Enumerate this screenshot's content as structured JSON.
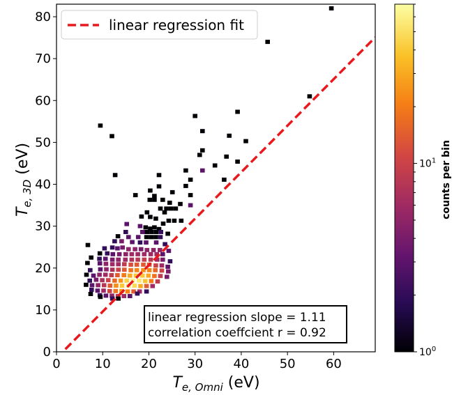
{
  "chart_data": {
    "type": "heatmap",
    "subtype": "2d-histogram",
    "xlabel": {
      "base": "T",
      "sub": "e, Omni",
      "unit": " (eV)"
    },
    "ylabel": {
      "base": "T",
      "sub": "e, 3D",
      "unit": " (eV)"
    },
    "xlim": [
      0,
      69
    ],
    "ylim": [
      0,
      83
    ],
    "xticks": [
      0,
      10,
      20,
      30,
      40,
      50,
      60
    ],
    "yticks": [
      0,
      10,
      20,
      30,
      40,
      50,
      60,
      70,
      80
    ],
    "bin_width": 1,
    "bin_height": 1,
    "colormap": "inferno",
    "colorbar": {
      "label": "counts per bin",
      "scale": "log",
      "range": [
        1,
        70
      ],
      "tick_labels": [
        {
          "value": 1,
          "base": "10",
          "exp": "0"
        },
        {
          "value": 10,
          "base": "10",
          "exp": "1"
        }
      ]
    },
    "legend": {
      "entry": "linear regression fit",
      "placement": "top-left",
      "color": "#e8191d",
      "style": "dashed"
    },
    "fit_line": {
      "slope": 1.11,
      "intercept": -1.5
    },
    "annotation": [
      "linear regression slope = 1.11",
      "correlation coeffcient r = 0.92"
    ],
    "bins": [
      [
        59.5,
        82,
        1
      ],
      [
        45.7,
        74,
        1
      ],
      [
        54.8,
        61,
        1
      ],
      [
        9.5,
        54,
        1
      ],
      [
        12,
        51.5,
        1
      ],
      [
        30,
        56.3,
        1
      ],
      [
        39.2,
        57.3,
        1
      ],
      [
        31.6,
        52.7,
        1
      ],
      [
        37.4,
        51.6,
        1
      ],
      [
        41,
        50.3,
        1
      ],
      [
        31.6,
        48.1,
        1
      ],
      [
        31,
        47,
        1
      ],
      [
        36.8,
        46.6,
        1
      ],
      [
        39.2,
        45.4,
        1
      ],
      [
        34.3,
        44.5,
        1
      ],
      [
        28,
        43.3,
        1
      ],
      [
        31.6,
        43.3,
        3
      ],
      [
        22.2,
        42.2,
        1
      ],
      [
        12.7,
        42.2,
        1
      ],
      [
        29,
        41.1,
        1
      ],
      [
        36.3,
        41.1,
        1
      ],
      [
        28,
        39.6,
        1
      ],
      [
        22.2,
        39.5,
        1
      ],
      [
        25.1,
        38.1,
        1
      ],
      [
        20.3,
        38.5,
        1
      ],
      [
        17.1,
        37.4,
        1
      ],
      [
        21.2,
        37.2,
        1
      ],
      [
        29,
        37.4,
        1
      ],
      [
        23,
        36.3,
        1
      ],
      [
        20.2,
        36.3,
        1
      ],
      [
        21.2,
        36.3,
        1
      ],
      [
        24.5,
        35.6,
        1
      ],
      [
        29,
        35,
        3
      ],
      [
        26.8,
        35.3,
        1
      ],
      [
        22.5,
        34.2,
        1
      ],
      [
        23.8,
        34.2,
        1
      ],
      [
        24.8,
        34.2,
        1
      ],
      [
        25.8,
        34.2,
        1
      ],
      [
        19.6,
        33.3,
        1
      ],
      [
        23.4,
        33.3,
        1
      ],
      [
        18.4,
        32.3,
        1
      ],
      [
        20.3,
        32.2,
        1
      ],
      [
        21.5,
        31.8,
        1
      ],
      [
        24.3,
        31.3,
        1
      ],
      [
        25.5,
        31.3,
        1
      ],
      [
        23.1,
        30.6,
        1
      ],
      [
        27,
        31.3,
        1
      ],
      [
        15.2,
        30.5,
        3
      ],
      [
        18.1,
        30,
        3
      ],
      [
        19.3,
        29.7,
        1
      ],
      [
        20.3,
        29.4,
        1
      ],
      [
        21.2,
        29.7,
        1
      ],
      [
        22.2,
        29.3,
        1
      ],
      [
        15,
        28.6,
        2
      ],
      [
        18.6,
        28.6,
        3
      ],
      [
        19.6,
        28.6,
        1
      ],
      [
        20.6,
        28.6,
        1
      ],
      [
        21.6,
        28.6,
        1
      ],
      [
        22.6,
        28.6,
        2
      ],
      [
        24.1,
        28.2,
        1
      ],
      [
        13.3,
        27.6,
        1
      ],
      [
        15.6,
        27.4,
        3
      ],
      [
        17.7,
        27.4,
        3
      ],
      [
        19.5,
        27.4,
        1
      ],
      [
        20.5,
        27.4,
        1
      ],
      [
        21.5,
        27.4,
        1
      ],
      [
        22.5,
        27.4,
        2
      ],
      [
        12.6,
        26.4,
        2
      ],
      [
        14.1,
        26.4,
        4
      ],
      [
        16.4,
        26.2,
        3
      ],
      [
        18.1,
        26.1,
        2
      ],
      [
        19.4,
        26.1,
        3
      ],
      [
        21.6,
        26.1,
        3
      ],
      [
        23.5,
        25.7,
        2
      ],
      [
        6.8,
        25.5,
        1
      ],
      [
        10.4,
        24.7,
        2
      ],
      [
        12.1,
        24.9,
        2
      ],
      [
        13.2,
        24.7,
        3
      ],
      [
        14.3,
        24.9,
        4
      ],
      [
        15.6,
        24.5,
        5
      ],
      [
        17,
        24.5,
        5
      ],
      [
        18.3,
        24.5,
        4
      ],
      [
        19.6,
        24.3,
        5
      ],
      [
        21,
        24.3,
        5
      ],
      [
        22.4,
        24.3,
        5
      ],
      [
        24.3,
        24.1,
        3
      ],
      [
        9.4,
        23.5,
        1
      ],
      [
        11,
        23.5,
        2
      ],
      [
        12.2,
        23.3,
        3
      ],
      [
        13.6,
        23.3,
        4
      ],
      [
        15,
        23.3,
        5
      ],
      [
        16.3,
        23.3,
        6
      ],
      [
        17.6,
        23.3,
        6
      ],
      [
        19,
        23.3,
        6
      ],
      [
        20.4,
        23.3,
        6
      ],
      [
        21.7,
        23.3,
        6
      ],
      [
        23,
        23.3,
        3
      ],
      [
        7.5,
        22.5,
        1
      ],
      [
        9.3,
        22.2,
        2
      ],
      [
        10.6,
        22.2,
        3
      ],
      [
        12.1,
        22,
        4
      ],
      [
        13.4,
        22,
        5
      ],
      [
        14.9,
        22,
        6
      ],
      [
        16.3,
        22,
        7
      ],
      [
        17.6,
        22,
        8
      ],
      [
        19,
        22,
        9
      ],
      [
        20.4,
        22,
        8
      ],
      [
        21.8,
        22,
        6
      ],
      [
        23,
        22,
        4
      ],
      [
        24.6,
        21.6,
        2
      ],
      [
        6.7,
        21.2,
        1
      ],
      [
        9.4,
        21.1,
        3
      ],
      [
        10.7,
        21,
        5
      ],
      [
        12.1,
        20.9,
        6
      ],
      [
        13.4,
        20.9,
        6
      ],
      [
        14.7,
        20.9,
        9
      ],
      [
        16.1,
        20.8,
        12
      ],
      [
        17.4,
        20.8,
        14
      ],
      [
        18.8,
        20.8,
        14
      ],
      [
        20.1,
        20.8,
        13
      ],
      [
        21.5,
        20.6,
        10
      ],
      [
        22.8,
        20.6,
        6
      ],
      [
        24.1,
        20.3,
        3
      ],
      [
        7.3,
        19.5,
        2
      ],
      [
        9.5,
        19.7,
        3
      ],
      [
        10.8,
        19.7,
        5
      ],
      [
        12.1,
        19.6,
        7
      ],
      [
        13.4,
        19.6,
        10
      ],
      [
        14.7,
        19.6,
        14
      ],
      [
        16.1,
        19.5,
        18
      ],
      [
        17.4,
        19.5,
        22
      ],
      [
        18.8,
        19.5,
        24
      ],
      [
        20.1,
        19.5,
        22
      ],
      [
        21.4,
        19.5,
        16
      ],
      [
        22.8,
        19.4,
        10
      ],
      [
        24.2,
        19.2,
        4
      ],
      [
        6.5,
        18.4,
        1
      ],
      [
        8,
        18.2,
        3
      ],
      [
        9.3,
        18.4,
        5
      ],
      [
        10.6,
        18.4,
        6
      ],
      [
        11.9,
        18.3,
        9
      ],
      [
        13.2,
        18.3,
        14
      ],
      [
        14.6,
        18.3,
        20
      ],
      [
        15.9,
        18.2,
        30
      ],
      [
        17.2,
        18.2,
        40
      ],
      [
        18.6,
        18.2,
        40
      ],
      [
        19.9,
        18.2,
        30
      ],
      [
        21.2,
        18.1,
        18
      ],
      [
        22.5,
        18.1,
        9
      ],
      [
        23.9,
        17.9,
        4
      ],
      [
        7.2,
        17,
        2
      ],
      [
        8.6,
        17.2,
        4
      ],
      [
        9.9,
        17.1,
        7
      ],
      [
        11.2,
        17.1,
        10
      ],
      [
        12.6,
        17,
        16
      ],
      [
        13.9,
        17,
        26
      ],
      [
        15.2,
        17,
        44
      ],
      [
        16.5,
        17,
        60
      ],
      [
        17.9,
        17,
        55
      ],
      [
        19.2,
        16.9,
        38
      ],
      [
        20.5,
        16.9,
        20
      ],
      [
        21.9,
        16.8,
        9
      ],
      [
        6.4,
        16,
        1
      ],
      [
        7.7,
        15.9,
        3
      ],
      [
        9,
        15.9,
        5
      ],
      [
        10.3,
        15.9,
        8
      ],
      [
        11.6,
        15.8,
        14
      ],
      [
        12.9,
        15.8,
        24
      ],
      [
        14.2,
        15.8,
        40
      ],
      [
        15.6,
        15.8,
        55
      ],
      [
        16.9,
        15.8,
        48
      ],
      [
        18.2,
        15.7,
        30
      ],
      [
        19.5,
        15.7,
        14
      ],
      [
        20.8,
        15.7,
        6
      ],
      [
        7.6,
        14.8,
        2
      ],
      [
        8.9,
        14.6,
        3
      ],
      [
        10.2,
        14.6,
        6
      ],
      [
        11.5,
        14.5,
        10
      ],
      [
        12.8,
        14.5,
        18
      ],
      [
        14.1,
        14.5,
        26
      ],
      [
        15.4,
        14.4,
        22
      ],
      [
        16.7,
        14.4,
        14
      ],
      [
        18,
        14.4,
        6
      ],
      [
        7.4,
        13.8,
        1
      ],
      [
        9.4,
        13.5,
        2
      ],
      [
        10.7,
        13.4,
        3
      ],
      [
        12,
        13.4,
        5
      ],
      [
        13.3,
        13.3,
        8
      ],
      [
        14.6,
        13.3,
        6
      ],
      [
        15.9,
        13.3,
        3
      ],
      [
        12.1,
        12.7,
        2
      ],
      [
        13.4,
        12.7,
        1
      ],
      [
        9.5,
        13.1,
        1
      ],
      [
        17.5,
        13.9,
        2
      ],
      [
        19.5,
        14.4,
        2
      ]
    ]
  }
}
